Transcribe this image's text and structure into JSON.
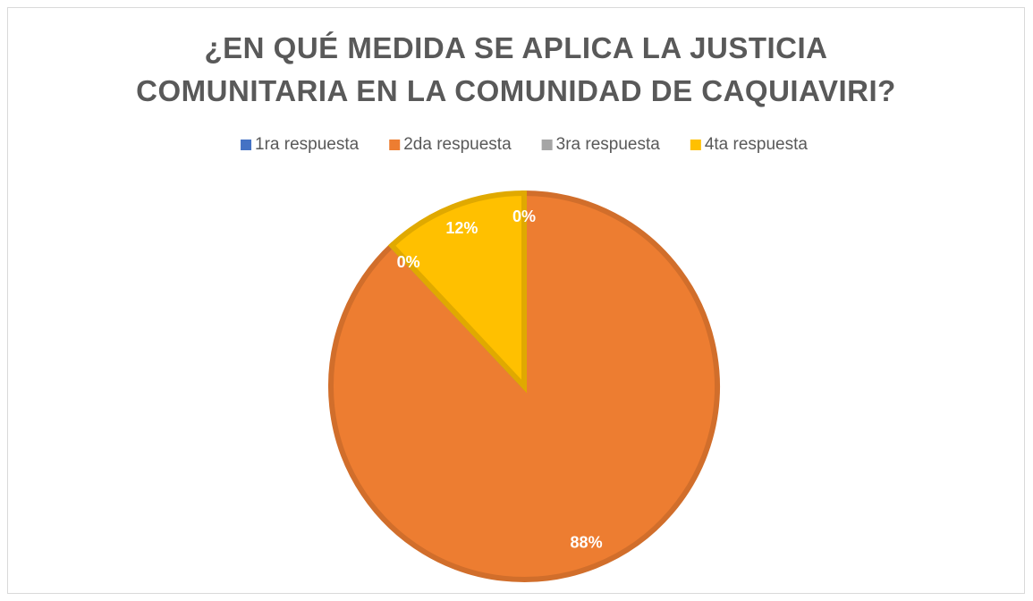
{
  "chart_data": {
    "type": "pie",
    "title": "¿EN QUÉ MEDIDA SE APLICA LA JUSTICIA COMUNITARIA EN LA COMUNIDAD DE CAQUIAVIRI?",
    "categories": [
      "1ra respuesta",
      "2da respuesta",
      "3ra respuesta",
      "4ta respuesta"
    ],
    "values": [
      0,
      88,
      0,
      12
    ],
    "value_labels": [
      "0%",
      "88%",
      "0%",
      "12%"
    ],
    "colors": [
      "#4472c4",
      "#ed7d31",
      "#a5a5a5",
      "#ffc000"
    ],
    "legend": "top"
  }
}
